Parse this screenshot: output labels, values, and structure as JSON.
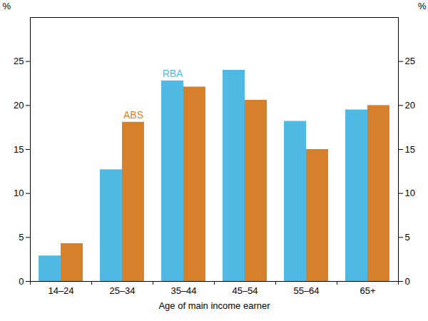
{
  "chart_data": {
    "type": "bar",
    "x_label": "Age of main income earner",
    "y_label": "%",
    "categories": [
      "14–24",
      "25–34",
      "35–44",
      "45–54",
      "55–64",
      "65+"
    ],
    "series": [
      {
        "name": "RBA",
        "color": "#4fb9e3",
        "values": [
          2.9,
          12.7,
          22.8,
          24.0,
          18.2,
          19.5
        ]
      },
      {
        "name": "ABS",
        "color": "#d6802b",
        "values": [
          4.3,
          18.1,
          22.1,
          20.6,
          15.0,
          20.0
        ]
      }
    ],
    "ylim": [
      0,
      30
    ],
    "yticks": [
      0,
      5,
      10,
      15,
      20,
      25
    ],
    "grid": false
  }
}
